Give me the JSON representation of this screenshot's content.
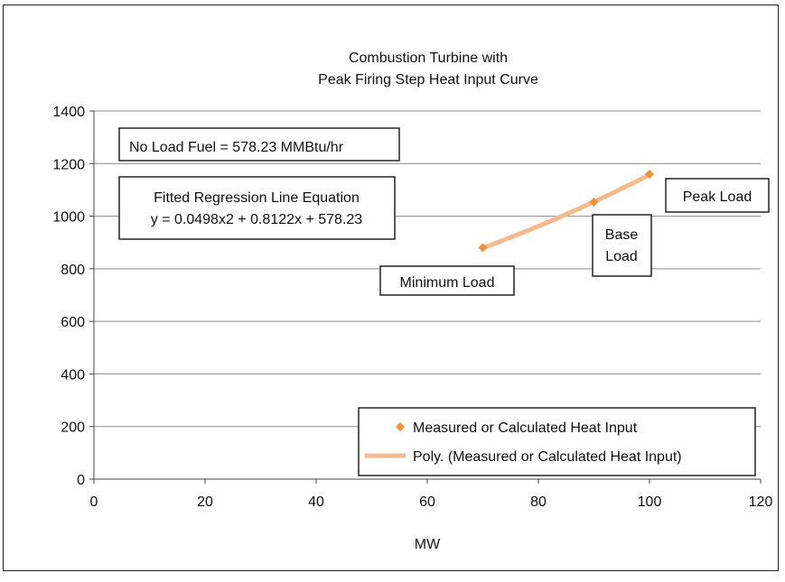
{
  "chart_data": {
    "type": "scatter",
    "title": [
      "Combustion Turbine with",
      "Peak Firing Step Heat Input Curve"
    ],
    "xlabel": "MW",
    "ylabel": "",
    "xlim": [
      0,
      120
    ],
    "ylim": [
      0,
      1400
    ],
    "x_ticks": [
      0,
      20,
      40,
      60,
      80,
      100,
      120
    ],
    "y_ticks": [
      0,
      200,
      400,
      600,
      800,
      1000,
      1200,
      1400
    ],
    "grid": "horizontal",
    "legend_position": "bottom-right",
    "series": [
      {
        "name": "Measured or Calculated Heat Input",
        "kind": "points",
        "marker": "diamond",
        "color": "#f0923a",
        "x": [
          70,
          90,
          100
        ],
        "y": [
          880,
          1054,
          1160
        ]
      },
      {
        "name": "Poly. (Measured or Calculated Heat Input)",
        "kind": "fit",
        "color": "#f5bb8c",
        "coefficients": [
          0.0498,
          0.8122,
          578.23
        ],
        "x_range": [
          70,
          100
        ]
      }
    ],
    "annotations": [
      {
        "lines": [
          "No Load Fuel = 578.23 MMBtu/hr"
        ]
      },
      {
        "lines": [
          "Fitted Regression Line Equation",
          "y = 0.0498x2 + 0.8122x + 578.23"
        ]
      },
      {
        "lines": [
          "Minimum Load"
        ]
      },
      {
        "lines": [
          "Base",
          "Load"
        ]
      },
      {
        "lines": [
          "Peak Load"
        ]
      }
    ]
  }
}
